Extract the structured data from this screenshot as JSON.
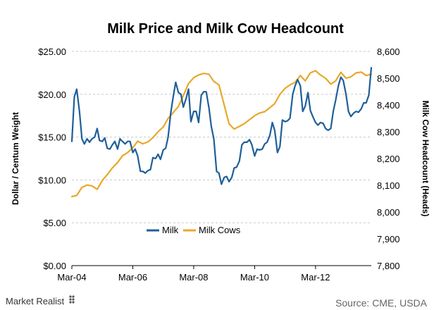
{
  "chart_data": {
    "type": "line",
    "title": "Milk Price and Milk Cow Headcount",
    "ylabel": "Dollar / Centum Weight",
    "y2label": "Milk Cow Headcount (Heads)",
    "xlabel": "",
    "x_ticks": [
      "Mar-04",
      "Mar-06",
      "Mar-08",
      "Mar-10",
      "Mar-12"
    ],
    "x_tick_values": [
      2004.17,
      2006.17,
      2008.17,
      2010.17,
      2012.17
    ],
    "xlim": [
      2004.17,
      2014.0
    ],
    "ylim": [
      0,
      25
    ],
    "y_ticks": [
      "$0.00",
      "$5.00",
      "$10.00",
      "$15.00",
      "$20.00",
      "$25.00"
    ],
    "y_tick_values": [
      0,
      5,
      10,
      15,
      20,
      25
    ],
    "y2lim": [
      7800,
      8600
    ],
    "y2_ticks": [
      "7,800",
      "7,900",
      "8,000",
      "8,100",
      "8,200",
      "8,300",
      "8,400",
      "8,500",
      "8,600"
    ],
    "y2_tick_values": [
      7800,
      7900,
      8000,
      8100,
      8200,
      8300,
      8400,
      8500,
      8600
    ],
    "grid": "horizontal dashed",
    "legend_position": "bottom-center",
    "series": [
      {
        "name": "Milk",
        "axis": "left",
        "color": "#1f5f9a",
        "x": [
          2004.17,
          2004.25,
          2004.33,
          2004.42,
          2004.5,
          2004.58,
          2004.67,
          2004.75,
          2004.83,
          2004.92,
          2005.0,
          2005.08,
          2005.17,
          2005.25,
          2005.33,
          2005.42,
          2005.5,
          2005.58,
          2005.67,
          2005.75,
          2005.83,
          2005.92,
          2006.0,
          2006.08,
          2006.17,
          2006.25,
          2006.33,
          2006.42,
          2006.5,
          2006.58,
          2006.67,
          2006.75,
          2006.83,
          2006.92,
          2007.0,
          2007.08,
          2007.17,
          2007.25,
          2007.33,
          2007.42,
          2007.5,
          2007.58,
          2007.67,
          2007.75,
          2007.83,
          2007.92,
          2008.0,
          2008.08,
          2008.17,
          2008.25,
          2008.33,
          2008.42,
          2008.5,
          2008.58,
          2008.67,
          2008.75,
          2008.83,
          2008.92,
          2009.0,
          2009.08,
          2009.17,
          2009.25,
          2009.33,
          2009.42,
          2009.5,
          2009.58,
          2009.67,
          2009.75,
          2009.83,
          2009.92,
          2010.0,
          2010.08,
          2010.17,
          2010.25,
          2010.33,
          2010.42,
          2010.5,
          2010.58,
          2010.67,
          2010.75,
          2010.83,
          2010.92,
          2011.0,
          2011.08,
          2011.17,
          2011.25,
          2011.33,
          2011.42,
          2011.5,
          2011.58,
          2011.67,
          2011.75,
          2011.83,
          2011.92,
          2012.0,
          2012.08,
          2012.17,
          2012.25,
          2012.33,
          2012.42,
          2012.5,
          2012.58,
          2012.67,
          2012.75,
          2012.83,
          2012.92,
          2013.0,
          2013.08,
          2013.17,
          2013.25,
          2013.33,
          2013.42,
          2013.5,
          2013.58,
          2013.67,
          2013.75,
          2013.83,
          2013.92,
          2014.0
        ],
        "values": [
          14.5,
          19.7,
          20.6,
          18.0,
          14.8,
          14.2,
          14.8,
          14.4,
          14.8,
          15.0,
          16.0,
          14.6,
          14.5,
          14.9,
          13.7,
          13.6,
          14.1,
          14.5,
          13.6,
          14.8,
          14.5,
          14.2,
          14.5,
          14.5,
          13.2,
          13.6,
          12.8,
          11.0,
          11.0,
          10.8,
          11.1,
          11.2,
          12.6,
          12.5,
          13.0,
          12.4,
          13.5,
          13.7,
          15.0,
          17.9,
          19.8,
          21.4,
          20.2,
          20.0,
          18.5,
          19.5,
          20.6,
          16.8,
          18.0,
          18.0,
          16.7,
          19.9,
          20.3,
          20.3,
          18.4,
          16.2,
          14.8,
          11.0,
          10.8,
          9.5,
          10.3,
          10.4,
          9.8,
          10.3,
          11.4,
          11.5,
          12.2,
          14.1,
          14.4,
          14.4,
          14.7,
          14.1,
          12.8,
          13.6,
          13.5,
          13.6,
          14.2,
          14.4,
          15.2,
          16.7,
          15.8,
          13.2,
          13.9,
          17.0,
          16.8,
          16.9,
          17.2,
          20.0,
          21.0,
          21.7,
          21.0,
          18.0,
          18.6,
          20.2,
          18.1,
          17.4,
          16.7,
          16.4,
          16.7,
          16.6,
          16.0,
          15.8,
          16.0,
          18.0,
          19.3,
          21.0,
          22.0,
          21.6,
          20.0,
          18.0,
          17.4,
          17.8,
          18.0,
          17.9,
          18.3,
          19.0,
          19.0,
          19.9,
          23.1
        ]
      },
      {
        "name": "Milk Cows",
        "axis": "right",
        "color": "#e8a82a",
        "x": [
          2004.17,
          2004.33,
          2004.5,
          2004.67,
          2004.83,
          2005.0,
          2005.17,
          2005.33,
          2005.5,
          2005.67,
          2005.83,
          2006.0,
          2006.17,
          2006.33,
          2006.5,
          2006.67,
          2006.83,
          2007.0,
          2007.17,
          2007.33,
          2007.5,
          2007.67,
          2007.83,
          2008.0,
          2008.17,
          2008.33,
          2008.5,
          2008.67,
          2008.83,
          2009.0,
          2009.17,
          2009.33,
          2009.5,
          2009.67,
          2009.83,
          2010.0,
          2010.17,
          2010.33,
          2010.5,
          2010.67,
          2010.83,
          2011.0,
          2011.17,
          2011.33,
          2011.5,
          2011.67,
          2011.83,
          2012.0,
          2012.17,
          2012.33,
          2012.5,
          2012.67,
          2012.83,
          2013.0,
          2013.17,
          2013.33,
          2013.5,
          2013.67,
          2013.83,
          2014.0
        ],
        "values": [
          8058,
          8062,
          8092,
          8101,
          8098,
          8085,
          8118,
          8140,
          8165,
          8185,
          8210,
          8222,
          8240,
          8265,
          8255,
          8262,
          8278,
          8300,
          8318,
          8350,
          8372,
          8395,
          8435,
          8480,
          8502,
          8512,
          8518,
          8515,
          8488,
          8475,
          8400,
          8330,
          8310,
          8320,
          8330,
          8345,
          8360,
          8370,
          8375,
          8390,
          8405,
          8440,
          8462,
          8475,
          8485,
          8510,
          8490,
          8520,
          8528,
          8512,
          8500,
          8478,
          8490,
          8522,
          8500,
          8505,
          8520,
          8523,
          8510,
          8515
        ]
      }
    ]
  },
  "footer": {
    "brand": "Market Realist",
    "source": "Source: CME, USDA"
  }
}
